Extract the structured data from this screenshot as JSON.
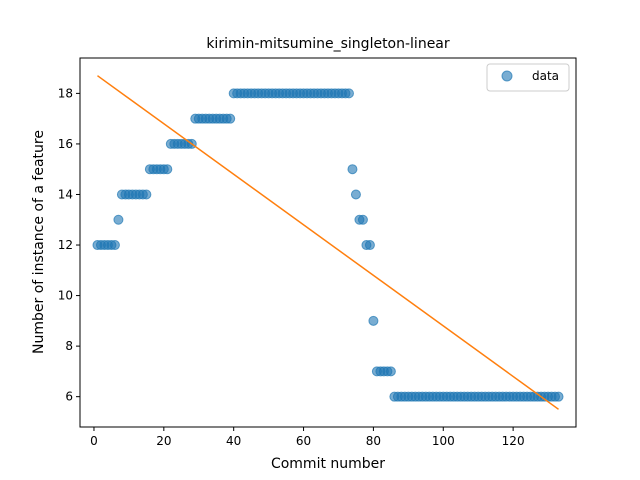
{
  "chart_data": {
    "type": "scatter",
    "title": "kirimin-mitsumine_singleton-linear",
    "xlabel": "Commit number",
    "ylabel": "Number of instance of a feature",
    "xlim": [
      -4,
      138
    ],
    "ylim": [
      4.8,
      19.4
    ],
    "xticks": [
      0,
      20,
      40,
      60,
      80,
      100,
      120
    ],
    "yticks": [
      6,
      8,
      10,
      12,
      14,
      16,
      18
    ],
    "grid": false,
    "legend_position": "top-right",
    "colors": {
      "data": "#1f77b4",
      "fit": "#ff7f0e"
    },
    "series": [
      {
        "name": "data",
        "kind": "scatter",
        "x": [
          1,
          2,
          3,
          4,
          5,
          6,
          7,
          8,
          9,
          10,
          11,
          12,
          13,
          14,
          15,
          16,
          17,
          18,
          19,
          20,
          21,
          22,
          23,
          24,
          25,
          26,
          27,
          28,
          29,
          30,
          31,
          32,
          33,
          34,
          35,
          36,
          37,
          38,
          39,
          40,
          41,
          42,
          43,
          44,
          45,
          46,
          47,
          48,
          49,
          50,
          51,
          52,
          53,
          54,
          55,
          56,
          57,
          58,
          59,
          60,
          61,
          62,
          63,
          64,
          65,
          66,
          67,
          68,
          69,
          70,
          71,
          72,
          73,
          74,
          75,
          76,
          77,
          78,
          79,
          80,
          81,
          82,
          83,
          84,
          85,
          86,
          87,
          88,
          89,
          90,
          91,
          92,
          93,
          94,
          95,
          96,
          97,
          98,
          99,
          100,
          101,
          102,
          103,
          104,
          105,
          106,
          107,
          108,
          109,
          110,
          111,
          112,
          113,
          114,
          115,
          116,
          117,
          118,
          119,
          120,
          121,
          122,
          123,
          124,
          125,
          126,
          127,
          128,
          129,
          130,
          131,
          132,
          133
        ],
        "y": [
          12,
          12,
          12,
          12,
          12,
          12,
          13,
          14,
          14,
          14,
          14,
          14,
          14,
          14,
          14,
          15,
          15,
          15,
          15,
          15,
          15,
          16,
          16,
          16,
          16,
          16,
          16,
          16,
          17,
          17,
          17,
          17,
          17,
          17,
          17,
          17,
          17,
          17,
          17,
          18,
          18,
          18,
          18,
          18,
          18,
          18,
          18,
          18,
          18,
          18,
          18,
          18,
          18,
          18,
          18,
          18,
          18,
          18,
          18,
          18,
          18,
          18,
          18,
          18,
          18,
          18,
          18,
          18,
          18,
          18,
          18,
          18,
          18,
          15,
          14,
          13,
          13,
          12,
          12,
          9,
          7,
          7,
          7,
          7,
          7,
          6,
          6,
          6,
          6,
          6,
          6,
          6,
          6,
          6,
          6,
          6,
          6,
          6,
          6,
          6,
          6,
          6,
          6,
          6,
          6,
          6,
          6,
          6,
          6,
          6,
          6,
          6,
          6,
          6,
          6,
          6,
          6,
          6,
          6,
          6,
          6,
          6,
          6,
          6,
          6,
          6,
          6,
          6,
          6,
          6,
          6,
          6,
          6
        ]
      },
      {
        "name": "",
        "kind": "line",
        "x": [
          1,
          133
        ],
        "y": [
          18.7,
          5.5
        ]
      }
    ]
  }
}
